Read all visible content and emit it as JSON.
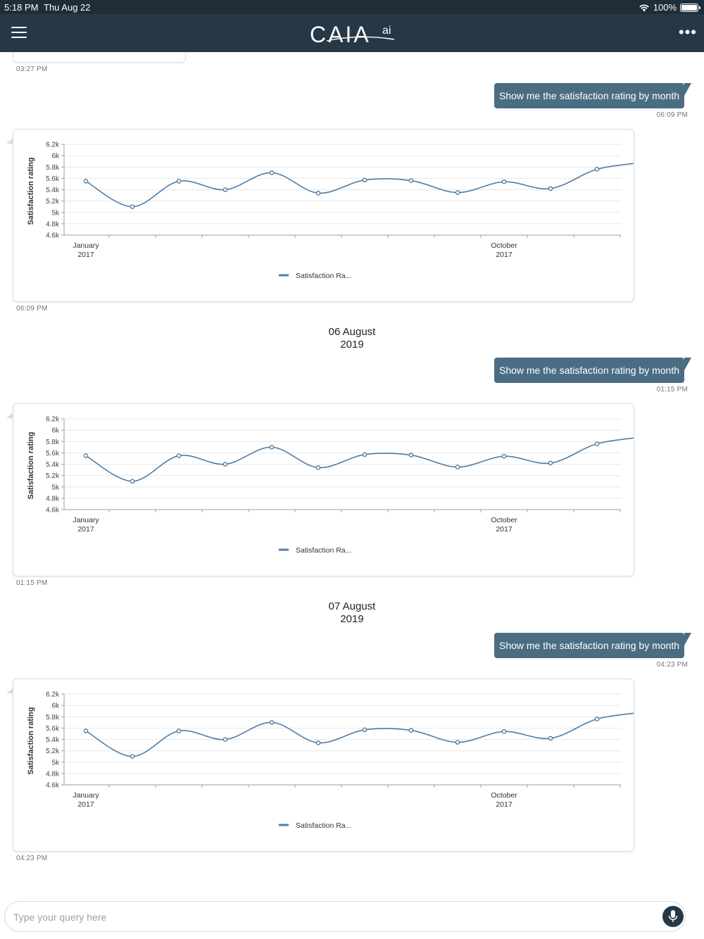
{
  "status_bar": {
    "time": "5:18 PM",
    "date": "Thu Aug 22",
    "battery": "100%"
  },
  "app": {
    "logo_text": "CAIA",
    "logo_sup": "ai"
  },
  "chat": {
    "prev_timestamp": "03:27 PM",
    "sections": [
      {
        "date_line1": "",
        "date_line2": "",
        "query": "Show me the satisfaction rating by month",
        "query_time": "06:09 PM",
        "response_time": "06:09 PM"
      },
      {
        "date_line1": "06 August",
        "date_line2": "2019",
        "query": "Show me the satisfaction rating by month",
        "query_time": "01:15 PM",
        "response_time": "01:15 PM"
      },
      {
        "date_line1": "07 August",
        "date_line2": "2019",
        "query": "Show me the satisfaction rating by month",
        "query_time": "04:23 PM",
        "response_time": "04:23 PM"
      }
    ]
  },
  "chart_data": {
    "type": "line",
    "ylabel": "Satisfaction rating",
    "ylim": [
      4600,
      6200
    ],
    "yticks": [
      4600,
      4800,
      5000,
      5200,
      5400,
      5600,
      5800,
      6000,
      6200
    ],
    "ytick_labels": [
      "4.6k",
      "4.8k",
      "5k",
      "5.2k",
      "5.4k",
      "5.6k",
      "5.8k",
      "6k",
      "6.2k"
    ],
    "x_labels": [
      {
        "index": 0,
        "line1": "January",
        "line2": "2017"
      },
      {
        "index": 9,
        "line1": "October",
        "line2": "2017"
      }
    ],
    "series": [
      {
        "name": "Satisfaction Ra...",
        "color": "#4f7ea6",
        "values": [
          5550,
          5100,
          5550,
          5400,
          5700,
          5340,
          5570,
          5560,
          5350,
          5540,
          5420,
          5760,
          5880
        ]
      }
    ],
    "markers_count": 12,
    "grid": true,
    "legend": "bottom-center"
  },
  "input": {
    "placeholder": "Type your query here"
  },
  "colors": {
    "header": "#263845",
    "status_bar": "#1f2d38",
    "user_bubble": "#4b6d83",
    "line": "#4f7ea6"
  }
}
